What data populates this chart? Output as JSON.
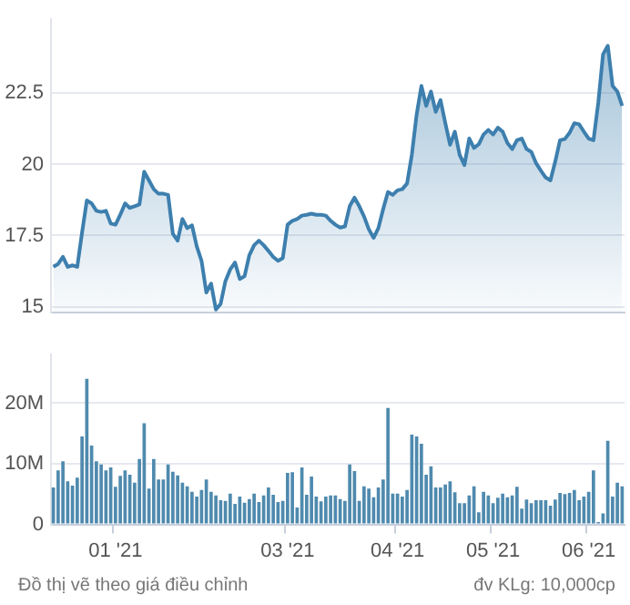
{
  "chart_data": [
    {
      "type": "area",
      "color": "#3d7fae",
      "tick_labels": "y",
      "grid": "y",
      "marker": "none",
      "ylim": [
        14.8,
        25.1
      ],
      "yticks": [
        15,
        17.5,
        20,
        22.5
      ],
      "categories": [
        null,
        null,
        null,
        null,
        null,
        null,
        null,
        null,
        null,
        null,
        null,
        null,
        null,
        null,
        null,
        null,
        null,
        null,
        null,
        null,
        null,
        null,
        null,
        null,
        null,
        null,
        null,
        null,
        null,
        null,
        null,
        null,
        null,
        null,
        null,
        null,
        null,
        null,
        null,
        null,
        null,
        null,
        null,
        null,
        null,
        null,
        null,
        null,
        null,
        null,
        null,
        null,
        null,
        null,
        null,
        null,
        null,
        null,
        null,
        null,
        null,
        null,
        null,
        null,
        null,
        null,
        null,
        null,
        null,
        null,
        null,
        null,
        null,
        null,
        null,
        null,
        null,
        null,
        null,
        null,
        null,
        null,
        null,
        null,
        null,
        null,
        null,
        null,
        null,
        null,
        null,
        null,
        null,
        null,
        null,
        null,
        null,
        null,
        null,
        null,
        null,
        null,
        null,
        null,
        null,
        null,
        null,
        null,
        null,
        null,
        null,
        null,
        null,
        null,
        null,
        null,
        null,
        null,
        null,
        null
      ],
      "values": [
        16.4,
        16.5,
        16.75,
        16.4,
        16.45,
        16.4,
        17.6,
        18.73,
        18.63,
        18.37,
        18.33,
        18.37,
        17.92,
        17.88,
        18.23,
        18.63,
        18.47,
        18.53,
        18.59,
        19.74,
        19.44,
        19.13,
        18.97,
        18.97,
        18.93,
        17.56,
        17.32,
        18.08,
        17.76,
        17.86,
        17.12,
        16.61,
        15.5,
        15.81,
        14.9,
        15.1,
        15.9,
        16.31,
        16.55,
        15.97,
        16.07,
        16.81,
        17.16,
        17.32,
        17.16,
        16.96,
        16.75,
        16.61,
        16.71,
        17.88,
        18.02,
        18.08,
        18.2,
        18.23,
        18.27,
        18.23,
        18.23,
        18.2,
        18.02,
        17.88,
        17.78,
        17.82,
        18.53,
        18.83,
        18.53,
        18.17,
        17.72,
        17.42,
        17.76,
        18.43,
        19.03,
        18.93,
        19.09,
        19.13,
        19.33,
        20.34,
        21.75,
        22.76,
        22.06,
        22.56,
        21.85,
        22.26,
        21.45,
        20.69,
        21.15,
        20.34,
        19.98,
        20.91,
        20.58,
        20.71,
        21.05,
        21.21,
        21.05,
        21.29,
        21.15,
        20.75,
        20.54,
        20.85,
        20.91,
        20.54,
        20.44,
        20.04,
        19.78,
        19.54,
        19.44,
        20.1,
        20.85,
        20.89,
        21.11,
        21.45,
        21.41,
        21.15,
        20.91,
        20.85,
        22.16,
        23.87,
        24.17,
        22.76,
        22.56,
        22.06
      ]
    },
    {
      "type": "bar",
      "color": "#4f8aae",
      "grid": "y",
      "ylim": [
        0,
        28
      ],
      "yticks": [
        0,
        {
          "value": 10,
          "label": "10M"
        },
        {
          "value": 20,
          "label": "20M"
        }
      ],
      "categories": [
        null,
        null,
        null,
        null,
        null,
        null,
        null,
        null,
        null,
        null,
        null,
        null,
        null,
        "01 '21",
        null,
        null,
        null,
        null,
        null,
        null,
        null,
        null,
        null,
        null,
        null,
        null,
        null,
        null,
        null,
        null,
        null,
        null,
        null,
        null,
        null,
        null,
        null,
        null,
        null,
        null,
        null,
        null,
        null,
        null,
        null,
        null,
        null,
        null,
        null,
        "03 '21",
        null,
        null,
        null,
        null,
        null,
        null,
        null,
        null,
        null,
        null,
        null,
        null,
        null,
        null,
        null,
        null,
        null,
        null,
        null,
        null,
        null,
        null,
        "04 '21",
        null,
        null,
        null,
        null,
        null,
        null,
        null,
        null,
        null,
        null,
        null,
        null,
        null,
        null,
        null,
        null,
        null,
        null,
        null,
        "05 '21",
        null,
        null,
        null,
        null,
        null,
        null,
        null,
        null,
        null,
        null,
        null,
        null,
        null,
        null,
        null,
        null,
        null,
        null,
        null,
        "06 '21",
        null,
        null,
        null,
        null,
        null,
        null,
        null
      ],
      "values": [
        6.1,
        8.9,
        10.4,
        7.1,
        6.4,
        7.7,
        14.5,
        24,
        13,
        10.4,
        9.9,
        8.9,
        9.4,
        6.2,
        8,
        8.9,
        8.2,
        6.9,
        10.8,
        16.7,
        5.9,
        10.8,
        7.4,
        7.4,
        9.9,
        8.7,
        8.1,
        6.9,
        6.3,
        5.4,
        4.6,
        5.7,
        7.4,
        5.4,
        4.8,
        4,
        3.9,
        5.1,
        3.4,
        4.6,
        3.6,
        4.2,
        5.1,
        3.7,
        4.8,
        6.1,
        4.9,
        3.7,
        3.9,
        8.5,
        8.6,
        2.8,
        9.4,
        4.9,
        7.9,
        4.6,
        3.8,
        4.6,
        4.8,
        4.8,
        4.2,
        3.9,
        9.9,
        8.8,
        3.9,
        6.3,
        5.9,
        4.5,
        6.1,
        7.4,
        19.2,
        5.1,
        5.1,
        4.6,
        5.7,
        14.8,
        14.5,
        13.3,
        8.2,
        9.6,
        6.1,
        6.1,
        6.6,
        7.1,
        5.3,
        3.5,
        3.5,
        4.8,
        6.3,
        2,
        5.4,
        4.8,
        3.5,
        4.4,
        5.1,
        4.5,
        4.8,
        6.2,
        2.6,
        4.1,
        3.5,
        4,
        4,
        4,
        3.1,
        4.1,
        5.2,
        5,
        5.2,
        5.7,
        4,
        4.6,
        5.4,
        8.9,
        0.4,
        1.8,
        13.8,
        4.6,
        6.9,
        6.3
      ],
      "annotations": [
        "Đồ thị vẽ theo giá điều chỉnh",
        "đv KLg: 10,000cp"
      ]
    }
  ]
}
